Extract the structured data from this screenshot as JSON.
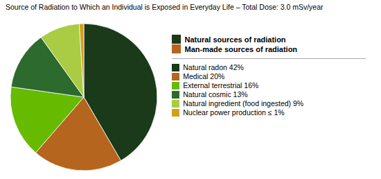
{
  "chart_data": {
    "type": "pie",
    "title": "Source of Radiation to Which an Individual is Exposed in Everyday Life – Total Dose: 3.0 mSv/year",
    "categories": [
      "Natural radon 42%",
      "Medical 20%",
      "External terrestrial 16%",
      "Natural cosmic 13%",
      "Natural ingredient (food ingested) 9%",
      "Nuclear power production ≤ 1%"
    ],
    "values": [
      42,
      20,
      16,
      13,
      9,
      1
    ],
    "colors": [
      "#1a3a1a",
      "#b5651d",
      "#66bb00",
      "#2d6a2d",
      "#aacc44",
      "#d4a017"
    ],
    "legend": "right",
    "groups": [
      {
        "name": "Natural sources of radiation",
        "color": "#1a3a1a"
      },
      {
        "name": "Man-made sources of radiation",
        "color": "#b5651d"
      }
    ]
  }
}
